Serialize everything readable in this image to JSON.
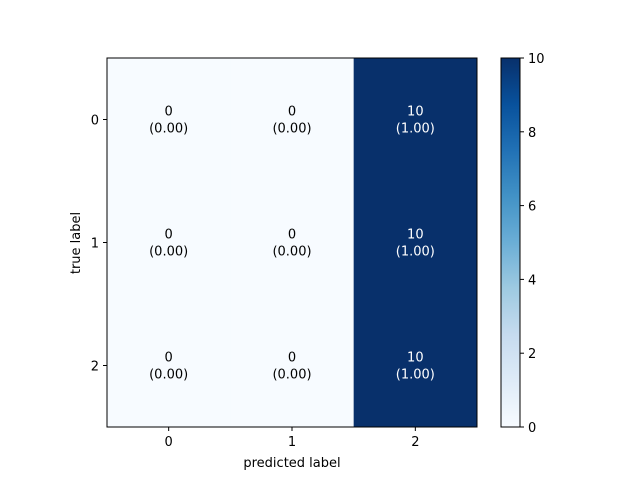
{
  "chart_data": {
    "type": "heatmap",
    "title": "",
    "xlabel": "predicted label",
    "ylabel": "true label",
    "x_categories": [
      "0",
      "1",
      "2"
    ],
    "y_categories": [
      "0",
      "1",
      "2"
    ],
    "values": [
      [
        0,
        0,
        10
      ],
      [
        0,
        0,
        10
      ],
      [
        0,
        0,
        10
      ]
    ],
    "normalized": [
      [
        0.0,
        0.0,
        1.0
      ],
      [
        0.0,
        0.0,
        1.0
      ],
      [
        0.0,
        0.0,
        1.0
      ]
    ],
    "cell_labels": [
      [
        {
          "count": "0",
          "norm": "(0.00)"
        },
        {
          "count": "0",
          "norm": "(0.00)"
        },
        {
          "count": "10",
          "norm": "(1.00)"
        }
      ],
      [
        {
          "count": "0",
          "norm": "(0.00)"
        },
        {
          "count": "0",
          "norm": "(0.00)"
        },
        {
          "count": "10",
          "norm": "(1.00)"
        }
      ],
      [
        {
          "count": "0",
          "norm": "(0.00)"
        },
        {
          "count": "0",
          "norm": "(0.00)"
        },
        {
          "count": "10",
          "norm": "(1.00)"
        }
      ]
    ],
    "colormap": "Blues",
    "color_low": "#f7fbff",
    "color_high": "#08306b",
    "text_color_light": "#ffffff",
    "text_color_dark": "#000000",
    "colorbar": {
      "min": 0,
      "max": 10,
      "ticks": [
        "0",
        "2",
        "4",
        "6",
        "8",
        "10"
      ],
      "tick_values": [
        0,
        2,
        4,
        6,
        8,
        10
      ]
    },
    "grid": false
  }
}
